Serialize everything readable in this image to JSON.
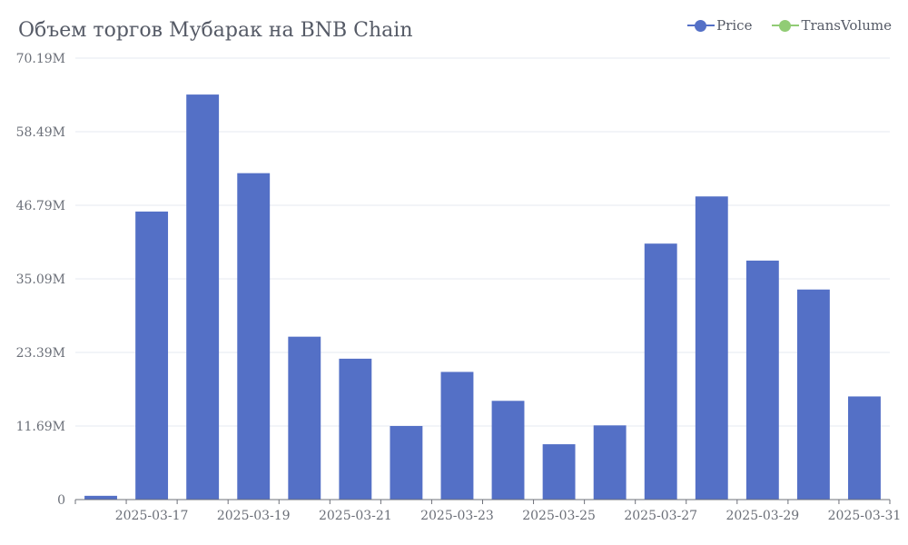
{
  "title": "Объем торгов Мубарак на BNB Chain",
  "legend": [
    {
      "name": "Price",
      "color": "#5470c6"
    },
    {
      "name": "TransVolume",
      "color": "#91cc75"
    }
  ],
  "chart_data": {
    "type": "bar",
    "title": "Объем торгов Мубарак на BNB Chain",
    "categories": [
      "2025-03-16",
      "2025-03-17",
      "2025-03-18",
      "2025-03-19",
      "2025-03-20",
      "2025-03-21",
      "2025-03-22",
      "2025-03-23",
      "2025-03-24",
      "2025-03-25",
      "2025-03-26",
      "2025-03-27",
      "2025-03-28",
      "2025-03-29",
      "2025-03-30",
      "2025-03-31"
    ],
    "x_tick_labels": [
      "2025-03-17",
      "2025-03-19",
      "2025-03-21",
      "2025-03-23",
      "2025-03-25",
      "2025-03-27",
      "2025-03-29",
      "2025-03-31"
    ],
    "y_tick_labels": [
      "0",
      "11.69M",
      "23.39M",
      "35.09M",
      "46.79M",
      "58.49M",
      "70.19M"
    ],
    "ylim": [
      0,
      70.19
    ],
    "y_unit": "M",
    "grid": true,
    "legend_position": "top-right",
    "series": [
      {
        "name": "Price",
        "color": "#5470c6",
        "values": [
          0.6,
          45.8,
          64.4,
          51.9,
          25.9,
          22.4,
          11.7,
          20.3,
          15.7,
          8.8,
          11.8,
          40.7,
          48.2,
          38.0,
          33.4,
          16.4
        ]
      }
    ]
  }
}
